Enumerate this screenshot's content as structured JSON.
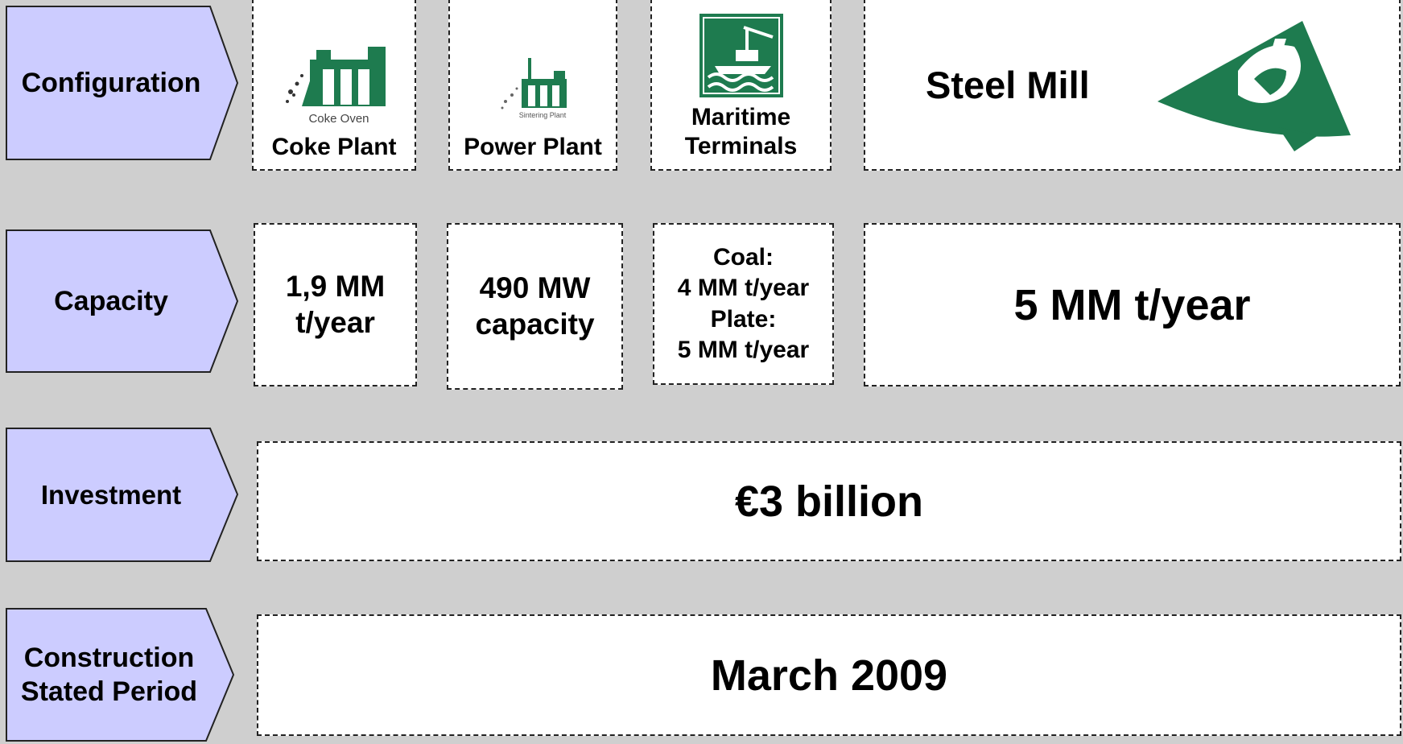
{
  "rows": [
    {
      "label": "Configuration",
      "cells": [
        {
          "icon_caption": "Coke Oven",
          "text": "Coke Plant"
        },
        {
          "icon_caption": "Sintering Plant",
          "text": "Power Plant"
        },
        {
          "text": "Maritime Terminals"
        },
        {
          "text": "Steel Mill"
        }
      ]
    },
    {
      "label": "Capacity",
      "cells": [
        {
          "text": "1,9 MM t/year"
        },
        {
          "text": "490 MW capacity"
        },
        {
          "lines": [
            "Coal:",
            "4 MM t/year",
            "Plate:",
            "5 MM t/year"
          ]
        },
        {
          "text": "5 MM t/year"
        }
      ]
    },
    {
      "label": "Investment",
      "cells": [
        {
          "text": "€3 billion"
        }
      ]
    },
    {
      "label": "Construction Stated Period",
      "cells": [
        {
          "text": "March 2009"
        }
      ]
    }
  ]
}
